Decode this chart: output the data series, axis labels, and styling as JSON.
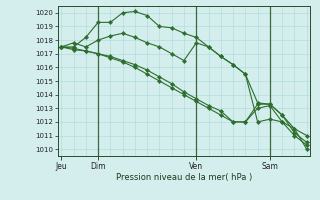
{
  "background_color": "#d4eeee",
  "grid_color": "#add8d8",
  "line_color": "#2d6e2d",
  "marker_color": "#2d6e2d",
  "axis_label": "Pression niveau de la mer( hPa )",
  "ylim": [
    1009.5,
    1020.5
  ],
  "yticks": [
    1010,
    1011,
    1012,
    1013,
    1014,
    1015,
    1016,
    1017,
    1018,
    1019,
    1020
  ],
  "xtick_labels": [
    "Jeu",
    "Dim",
    "Ven",
    "Sam"
  ],
  "xtick_positions": [
    0,
    3,
    11,
    17
  ],
  "vline_positions": [
    3,
    11,
    17
  ],
  "total_points": 21,
  "series": [
    [
      1017.5,
      1017.8,
      1017.5,
      1018.0,
      1018.3,
      1018.5,
      1018.2,
      1017.8,
      1017.5,
      1017.0,
      1016.5,
      1017.8,
      1017.5,
      1016.8,
      1016.2,
      1015.5,
      1013.4,
      1013.3,
      1012.5,
      1011.2,
      1010.5
    ],
    [
      1017.5,
      1017.5,
      1018.2,
      1019.3,
      1019.3,
      1020.0,
      1020.1,
      1019.8,
      1019.0,
      1018.9,
      1018.5,
      1018.2,
      1017.5,
      1016.8,
      1016.2,
      1015.5,
      1012.0,
      1012.2,
      1012.0,
      1011.0,
      1010.3
    ],
    [
      1017.5,
      1017.3,
      1017.2,
      1017.0,
      1016.8,
      1016.5,
      1016.2,
      1015.8,
      1015.3,
      1014.8,
      1014.2,
      1013.7,
      1013.2,
      1012.8,
      1012.0,
      1012.0,
      1013.0,
      1013.2,
      1012.0,
      1011.5,
      1010.0
    ],
    [
      1017.5,
      1017.4,
      1017.2,
      1017.0,
      1016.7,
      1016.4,
      1016.0,
      1015.5,
      1015.0,
      1014.5,
      1014.0,
      1013.5,
      1013.0,
      1012.5,
      1012.0,
      1012.0,
      1013.3,
      1013.3,
      1012.5,
      1011.5,
      1011.0
    ]
  ]
}
